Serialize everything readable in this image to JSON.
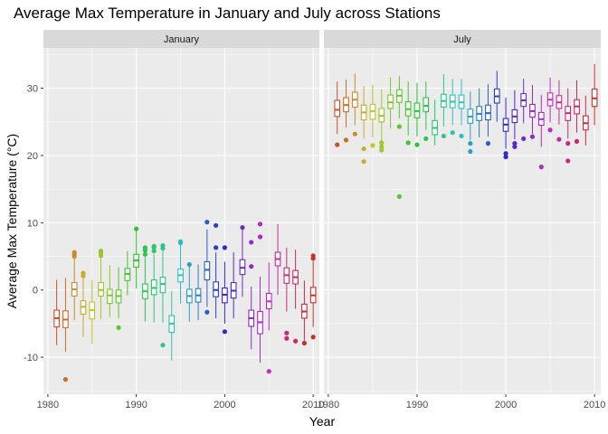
{
  "chart_data": {
    "type": "boxplot",
    "title": "Average Max Temperature in January and July across Stations",
    "xlabel": "Year",
    "ylabel": "Average Max Temperature (°C)",
    "xlim": [
      1979.5,
      2010.7
    ],
    "ylim": [
      -15.5,
      36
    ],
    "xticks": [
      1980,
      1990,
      2000,
      2010
    ],
    "yticks": [
      -10,
      0,
      10,
      20,
      30
    ],
    "facet_by": "month",
    "panel_background": "#ebebeb",
    "strip_background": "#d9d9d9",
    "grid_color": "#ffffff",
    "legend": "none",
    "series": [
      {
        "name": "January",
        "boxes": [
          {
            "year": 1981,
            "q1": -5.5,
            "median": -4.2,
            "q3": -3.0,
            "whisker_low": -8.2,
            "whisker_high": 1.5,
            "outliers": []
          },
          {
            "year": 1982,
            "q1": -5.6,
            "median": -4.4,
            "q3": -3.1,
            "whisker_low": -9.2,
            "whisker_high": 1.8,
            "outliers": [
              -13.3
            ]
          },
          {
            "year": 1983,
            "q1": -0.9,
            "median": 0.1,
            "q3": 1.1,
            "whisker_low": -4.5,
            "whisker_high": 4.8,
            "outliers": [
              5.0,
              5.3,
              5.6
            ]
          },
          {
            "year": 1984,
            "q1": -3.6,
            "median": -2.5,
            "q3": -1.6,
            "whisker_low": -7.0,
            "whisker_high": 1.8,
            "outliers": [
              2.1,
              2.5
            ]
          },
          {
            "year": 1985,
            "q1": -4.3,
            "median": -3.0,
            "q3": -1.8,
            "whisker_low": -8.0,
            "whisker_high": 1.5,
            "outliers": []
          },
          {
            "year": 1986,
            "q1": -0.9,
            "median": 0.0,
            "q3": 1.1,
            "whisker_low": -4.3,
            "whisker_high": 4.8,
            "outliers": [
              5.1,
              5.5,
              5.8
            ]
          },
          {
            "year": 1987,
            "q1": -2.0,
            "median": -0.8,
            "q3": 0.1,
            "whisker_low": -4.0,
            "whisker_high": 3.7,
            "outliers": []
          },
          {
            "year": 1988,
            "q1": -1.9,
            "median": -0.9,
            "q3": 0.0,
            "whisker_low": -4.2,
            "whisker_high": 3.4,
            "outliers": [
              -5.6
            ]
          },
          {
            "year": 1989,
            "q1": 1.4,
            "median": 2.4,
            "q3": 3.2,
            "whisker_low": -0.8,
            "whisker_high": 5.8,
            "outliers": []
          },
          {
            "year": 1990,
            "q1": 3.4,
            "median": 4.4,
            "q3": 5.3,
            "whisker_low": 0.2,
            "whisker_high": 9.0,
            "outliers": [
              9.1
            ]
          },
          {
            "year": 1991,
            "q1": -1.3,
            "median": -0.2,
            "q3": 0.9,
            "whisker_low": -4.7,
            "whisker_high": 4.9,
            "outliers": [
              5.3,
              5.9,
              6.3
            ]
          },
          {
            "year": 1992,
            "q1": -0.7,
            "median": 0.3,
            "q3": 1.5,
            "whisker_low": -4.8,
            "whisker_high": 5.3,
            "outliers": [
              5.8,
              6.3,
              6.5
            ]
          },
          {
            "year": 1993,
            "q1": -0.4,
            "median": 0.9,
            "q3": 1.9,
            "whisker_low": -4.9,
            "whisker_high": 5.8,
            "outliers": [
              6.2,
              6.6,
              -8.2
            ]
          },
          {
            "year": 1994,
            "q1": -6.3,
            "median": -5.0,
            "q3": -3.8,
            "whisker_low": -10.5,
            "whisker_high": -0.2,
            "outliers": []
          },
          {
            "year": 1995,
            "q1": 1.2,
            "median": 2.2,
            "q3": 3.1,
            "whisker_low": -2.0,
            "whisker_high": 6.8,
            "outliers": [
              7.0,
              7.2
            ]
          },
          {
            "year": 1996,
            "q1": -1.9,
            "median": -0.9,
            "q3": 0.1,
            "whisker_low": -4.7,
            "whisker_high": 3.5,
            "outliers": [
              3.8
            ]
          },
          {
            "year": 1997,
            "q1": -1.8,
            "median": -0.8,
            "q3": 0.2,
            "whisker_low": -4.5,
            "whisker_high": 3.8,
            "outliers": []
          },
          {
            "year": 1998,
            "q1": 1.5,
            "median": 3.0,
            "q3": 4.2,
            "whisker_low": -2.5,
            "whisker_high": 9.0,
            "outliers": [
              10.1,
              -3.3
            ]
          },
          {
            "year": 1999,
            "q1": -1.0,
            "median": 0.0,
            "q3": 1.2,
            "whisker_low": -4.2,
            "whisker_high": 5.6,
            "outliers": [
              9.6,
              6.3
            ]
          },
          {
            "year": 2000,
            "q1": -1.9,
            "median": -0.7,
            "q3": 0.3,
            "whisker_low": -5.0,
            "whisker_high": 4.2,
            "outliers": [
              -6.2,
              6.3
            ]
          },
          {
            "year": 2001,
            "q1": -1.2,
            "median": -0.1,
            "q3": 1.1,
            "whisker_low": -4.2,
            "whisker_high": 5.6,
            "outliers": []
          },
          {
            "year": 2002,
            "q1": 2.3,
            "median": 3.3,
            "q3": 4.5,
            "whisker_low": -1.0,
            "whisker_high": 9.0,
            "outliers": [
              9.3
            ]
          },
          {
            "year": 2003,
            "q1": -5.4,
            "median": -4.2,
            "q3": -3.0,
            "whisker_low": -8.8,
            "whisker_high": 0.5,
            "outliers": [
              3.5,
              7.1
            ]
          },
          {
            "year": 2004,
            "q1": -6.5,
            "median": -4.8,
            "q3": -3.2,
            "whisker_low": -10.8,
            "whisker_high": 2.0,
            "outliers": [
              9.8,
              7.9
            ]
          },
          {
            "year": 2005,
            "q1": -2.8,
            "median": -1.7,
            "q3": -0.5,
            "whisker_low": -6.0,
            "whisker_high": 4.1,
            "outliers": [
              -12.1
            ]
          },
          {
            "year": 2006,
            "q1": 3.6,
            "median": 4.6,
            "q3": 5.6,
            "whisker_low": -0.7,
            "whisker_high": 9.8,
            "outliers": []
          },
          {
            "year": 2007,
            "q1": 1.0,
            "median": 2.2,
            "q3": 3.3,
            "whisker_low": -3.2,
            "whisker_high": 6.3,
            "outliers": [
              -6.4,
              -7.2
            ]
          },
          {
            "year": 2008,
            "q1": 0.9,
            "median": 1.9,
            "q3": 2.9,
            "whisker_low": -2.8,
            "whisker_high": 6.0,
            "outliers": [
              -7.6
            ]
          },
          {
            "year": 2009,
            "q1": -4.2,
            "median": -3.2,
            "q3": -2.1,
            "whisker_low": -7.5,
            "whisker_high": 1.4,
            "outliers": [
              -7.9
            ]
          },
          {
            "year": 2010,
            "q1": -1.9,
            "median": -0.8,
            "q3": 0.4,
            "whisker_low": -5.5,
            "whisker_high": 4.3,
            "outliers": [
              4.7,
              5.1,
              -7.0
            ]
          }
        ]
      },
      {
        "name": "July",
        "boxes": [
          {
            "year": 1981,
            "q1": 25.8,
            "median": 26.8,
            "q3": 28.2,
            "whisker_low": 23.2,
            "whisker_high": 31.0,
            "outliers": [
              21.6
            ]
          },
          {
            "year": 1982,
            "q1": 26.5,
            "median": 27.5,
            "q3": 28.6,
            "whisker_low": 24.2,
            "whisker_high": 31.3,
            "outliers": [
              22.3
            ]
          },
          {
            "year": 1983,
            "q1": 27.2,
            "median": 28.3,
            "q3": 29.4,
            "whisker_low": 24.5,
            "whisker_high": 32.2,
            "outliers": [
              23.2
            ]
          },
          {
            "year": 1984,
            "q1": 25.3,
            "median": 26.4,
            "q3": 27.5,
            "whisker_low": 22.5,
            "whisker_high": 30.3,
            "outliers": [
              19.1,
              21.0
            ]
          },
          {
            "year": 1985,
            "q1": 25.4,
            "median": 26.6,
            "q3": 27.6,
            "whisker_low": 22.7,
            "whisker_high": 30.5,
            "outliers": [
              21.5
            ]
          },
          {
            "year": 1986,
            "q1": 25.0,
            "median": 25.9,
            "q3": 27.0,
            "whisker_low": 22.2,
            "whisker_high": 29.8,
            "outliers": [
              20.8,
              21.3,
              21.9
            ]
          },
          {
            "year": 1987,
            "q1": 27.0,
            "median": 27.9,
            "q3": 29.0,
            "whisker_low": 24.0,
            "whisker_high": 31.6,
            "outliers": []
          },
          {
            "year": 1988,
            "q1": 27.9,
            "median": 28.9,
            "q3": 29.8,
            "whisker_low": 25.5,
            "whisker_high": 31.8,
            "outliers": [
              13.9,
              24.3
            ]
          },
          {
            "year": 1989,
            "q1": 25.9,
            "median": 26.9,
            "q3": 28.0,
            "whisker_low": 23.0,
            "whisker_high": 31.0,
            "outliers": [
              21.9
            ]
          },
          {
            "year": 1990,
            "q1": 25.6,
            "median": 26.6,
            "q3": 27.8,
            "whisker_low": 22.8,
            "whisker_high": 30.8,
            "outliers": [
              21.6
            ]
          },
          {
            "year": 1991,
            "q1": 26.5,
            "median": 27.4,
            "q3": 28.6,
            "whisker_low": 23.8,
            "whisker_high": 31.0,
            "outliers": [
              22.5
            ]
          },
          {
            "year": 1992,
            "q1": 23.1,
            "median": 24.1,
            "q3": 25.2,
            "whisker_low": 21.5,
            "whisker_high": 28.3,
            "outliers": []
          },
          {
            "year": 1993,
            "q1": 27.2,
            "median": 28.1,
            "q3": 29.1,
            "whisker_low": 24.3,
            "whisker_high": 32.1,
            "outliers": [
              22.9
            ]
          },
          {
            "year": 1994,
            "q1": 27.1,
            "median": 28.0,
            "q3": 29.0,
            "whisker_low": 24.5,
            "whisker_high": 31.4,
            "outliers": [
              23.4
            ]
          },
          {
            "year": 1995,
            "q1": 27.0,
            "median": 27.9,
            "q3": 29.0,
            "whisker_low": 24.5,
            "whisker_high": 31.4,
            "outliers": [
              22.9
            ]
          },
          {
            "year": 1996,
            "q1": 24.8,
            "median": 25.8,
            "q3": 26.9,
            "whisker_low": 22.3,
            "whisker_high": 29.5,
            "outliers": [
              21.8,
              20.6
            ]
          },
          {
            "year": 1997,
            "q1": 25.2,
            "median": 26.2,
            "q3": 27.3,
            "whisker_low": 22.7,
            "whisker_high": 30.0,
            "outliers": []
          },
          {
            "year": 1998,
            "q1": 25.3,
            "median": 26.3,
            "q3": 27.5,
            "whisker_low": 22.8,
            "whisker_high": 30.6,
            "outliers": [
              21.8
            ]
          },
          {
            "year": 1999,
            "q1": 27.8,
            "median": 28.8,
            "q3": 29.9,
            "whisker_low": 25.0,
            "whisker_high": 32.6,
            "outliers": []
          },
          {
            "year": 2000,
            "q1": 23.6,
            "median": 24.6,
            "q3": 25.5,
            "whisker_low": 21.0,
            "whisker_high": 28.6,
            "outliers": [
              20.3,
              19.8
            ]
          },
          {
            "year": 2001,
            "q1": 24.9,
            "median": 25.8,
            "q3": 26.8,
            "whisker_low": 22.4,
            "whisker_high": 29.7,
            "outliers": [
              21.8,
              21.3
            ]
          },
          {
            "year": 2002,
            "q1": 27.3,
            "median": 28.2,
            "q3": 29.2,
            "whisker_low": 24.8,
            "whisker_high": 31.4,
            "outliers": [
              22.5
            ]
          },
          {
            "year": 2003,
            "q1": 25.7,
            "median": 26.6,
            "q3": 27.6,
            "whisker_low": 23.2,
            "whisker_high": 30.5,
            "outliers": [
              22.8
            ]
          },
          {
            "year": 2004,
            "q1": 24.5,
            "median": 25.4,
            "q3": 26.4,
            "whisker_low": 21.3,
            "whisker_high": 29.0,
            "outliers": [
              18.3
            ]
          },
          {
            "year": 2005,
            "q1": 27.4,
            "median": 28.3,
            "q3": 29.3,
            "whisker_low": 24.9,
            "whisker_high": 31.6,
            "outliers": [
              23.8
            ]
          },
          {
            "year": 2006,
            "q1": 27.0,
            "median": 27.9,
            "q3": 28.9,
            "whisker_low": 24.6,
            "whisker_high": 31.2,
            "outliers": [
              22.4
            ]
          },
          {
            "year": 2007,
            "q1": 25.2,
            "median": 26.3,
            "q3": 27.3,
            "whisker_low": 22.5,
            "whisker_high": 30.0,
            "outliers": [
              19.2,
              21.8
            ]
          },
          {
            "year": 2008,
            "q1": 26.2,
            "median": 27.3,
            "q3": 28.3,
            "whisker_low": 23.4,
            "whisker_high": 31.2,
            "outliers": [
              22.1
            ]
          },
          {
            "year": 2009,
            "q1": 23.8,
            "median": 24.8,
            "q3": 25.9,
            "whisker_low": 21.5,
            "whisker_high": 28.9,
            "outliers": []
          },
          {
            "year": 2010,
            "q1": 27.3,
            "median": 28.5,
            "q3": 29.9,
            "whisker_low": 24.5,
            "whisker_high": 33.6,
            "outliers": []
          }
        ]
      }
    ]
  }
}
